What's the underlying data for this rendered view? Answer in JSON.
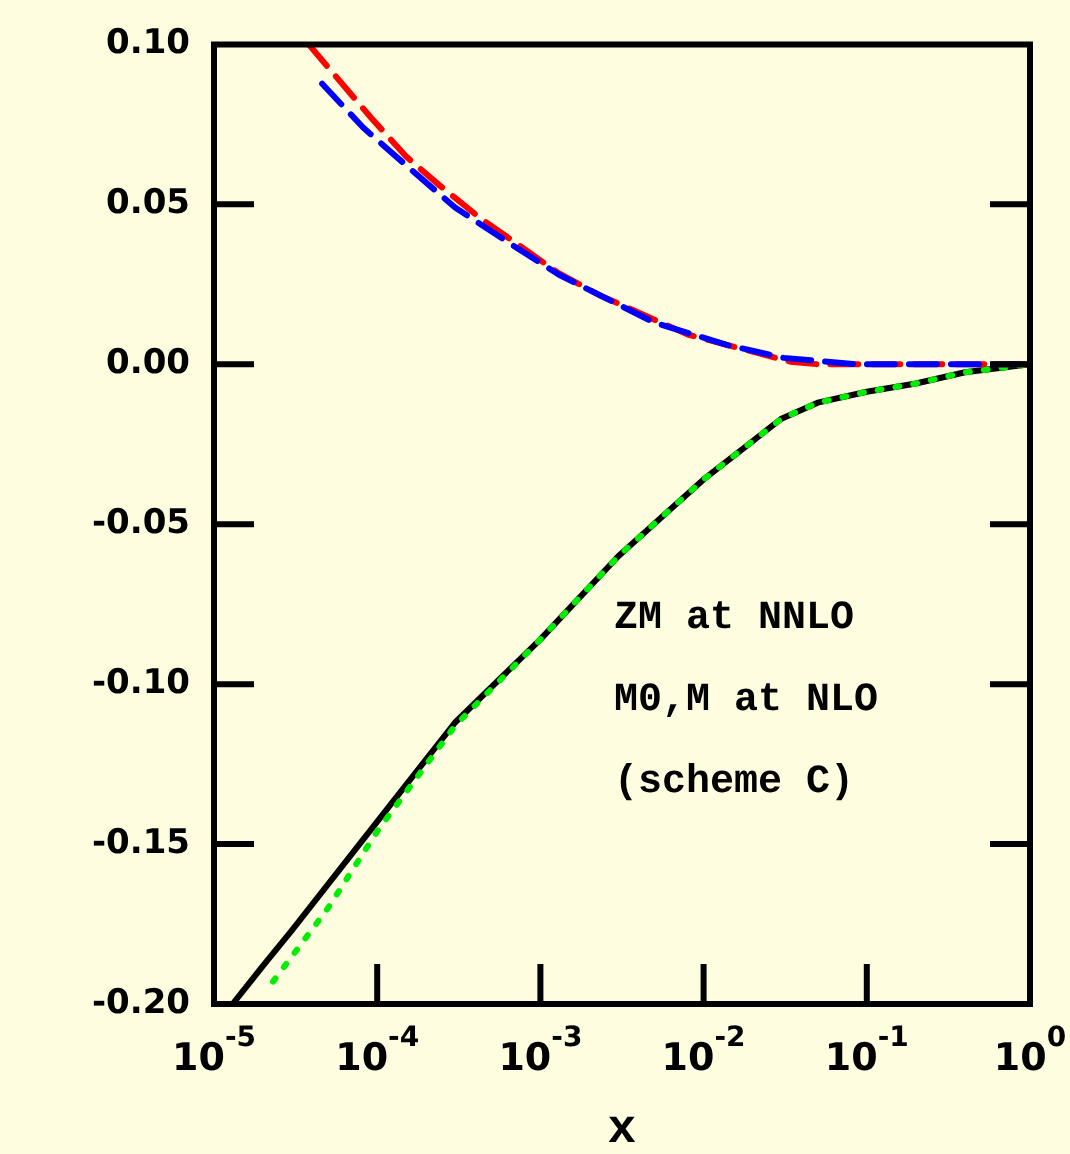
{
  "chart_data": {
    "type": "line",
    "xlabel": "x",
    "log": "x",
    "xlim": [
      1e-05,
      1
    ],
    "ylim": [
      -0.2,
      0.1
    ],
    "xticks": [
      {
        "value": 1e-05,
        "label": "10$^{-5}$"
      },
      {
        "value": 0.0001,
        "label": "10$^{-4}$"
      },
      {
        "value": 0.001,
        "label": "10$^{-3}$"
      },
      {
        "value": 0.01,
        "label": "10$^{-2}$"
      },
      {
        "value": 0.1,
        "label": "10$^{-1}$"
      },
      {
        "value": 1,
        "label": "10$^{0}$"
      }
    ],
    "yticks": [
      {
        "value": -0.2,
        "label": "-0.20"
      },
      {
        "value": -0.15,
        "label": "-0.15"
      },
      {
        "value": -0.1,
        "label": "-0.10"
      },
      {
        "value": -0.05,
        "label": "-0.05"
      },
      {
        "value": 0,
        "label": "0.00"
      },
      {
        "value": 0.05,
        "label": "0.05"
      },
      {
        "value": 0.1,
        "label": "0.10"
      }
    ],
    "grid": false,
    "legend": false,
    "marker": "none",
    "series": [
      {
        "color": "#000000",
        "line_style": "solid",
        "x": [
          1.3e-05,
          2e-05,
          3e-05,
          0.0001,
          0.0003,
          0.001,
          0.003,
          0.01,
          0.02,
          0.03,
          0.05,
          0.1,
          0.2,
          0.4,
          1
        ],
        "values": [
          -0.2,
          -0.188,
          -0.177,
          -0.143,
          -0.112,
          -0.086,
          -0.06,
          -0.036,
          -0.024,
          -0.017,
          -0.012,
          -0.0086,
          -0.006,
          -0.0025,
          0
        ]
      },
      {
        "color": "#00ee00",
        "line_style": "dotted",
        "x": [
          2.3e-05,
          5e-05,
          0.0001,
          0.0003,
          0.001,
          0.003,
          0.01,
          0.02,
          0.03,
          0.05,
          0.1,
          0.2,
          0.4,
          1
        ],
        "values": [
          -0.193,
          -0.17,
          -0.146,
          -0.113,
          -0.086,
          -0.06,
          -0.036,
          -0.024,
          -0.017,
          -0.012,
          -0.0086,
          -0.006,
          -0.0025,
          0
        ]
      },
      {
        "color": "#ff0000",
        "line_style": "dashed",
        "x": [
          3.8e-05,
          9.2e-05,
          0.00015,
          0.00024,
          0.00042,
          0.0013,
          0.0023,
          0.008,
          0.034,
          0.05,
          0.1,
          1
        ],
        "values": [
          0.1,
          0.077,
          0.065,
          0.056,
          0.046,
          0.0284,
          0.0216,
          0.0093,
          0.0008,
          0,
          0,
          0
        ]
      },
      {
        "color": "#0000ff",
        "line_style": "dashed",
        "x": [
          4.6e-05,
          8.2e-05,
          0.00016,
          0.0003,
          0.00064,
          0.0013,
          0.005,
          0.014,
          0.031,
          0.085,
          1
        ],
        "values": [
          0.0877,
          0.074,
          0.061,
          0.049,
          0.038,
          0.028,
          0.013,
          0.006,
          0.002,
          0,
          0
        ]
      }
    ],
    "annotations": [
      "ZM at NNLO",
      "M0,M at NLO",
      "(scheme C)"
    ]
  }
}
